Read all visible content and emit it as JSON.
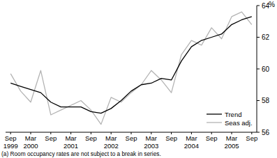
{
  "chart_data": {
    "type": "line",
    "y_label": "%",
    "footnote": "(a) Room occupancy rates are not subject to a break in series.",
    "categories": [
      "Sep 1999",
      null,
      "Mar 2000",
      null,
      "Sep",
      null,
      "Mar 2001",
      null,
      "Sep",
      null,
      "Mar 2002",
      null,
      "Sep",
      null,
      "Mar 2003",
      null,
      "Sep",
      null,
      "Mar 2004",
      null,
      "Sep",
      null,
      "Mar 2005",
      null,
      "Sep"
    ],
    "series": [
      {
        "name": "Trend",
        "color": "#000000",
        "values": [
          59.1,
          58.9,
          58.7,
          58.5,
          57.9,
          57.6,
          57.6,
          57.6,
          57.3,
          57.2,
          57.5,
          58.0,
          58.6,
          59.0,
          59.1,
          59.4,
          59.3,
          60.5,
          61.4,
          61.8,
          62.0,
          62.2,
          62.8,
          63.1,
          63.3
        ]
      },
      {
        "name": "Seas adj.",
        "color": "#b4b4b4",
        "values": [
          59.7,
          58.6,
          57.9,
          59.9,
          57.1,
          57.4,
          57.7,
          58.0,
          57.4,
          56.5,
          58.2,
          57.9,
          58.5,
          59.0,
          59.9,
          59.3,
          58.5,
          60.9,
          61.8,
          61.5,
          62.6,
          61.9,
          63.3,
          63.6,
          62.8
        ]
      }
    ],
    "ylim": [
      56,
      64
    ],
    "yticks": [
      56,
      58,
      60,
      62,
      64
    ],
    "grid": false,
    "legend": "lower right"
  }
}
